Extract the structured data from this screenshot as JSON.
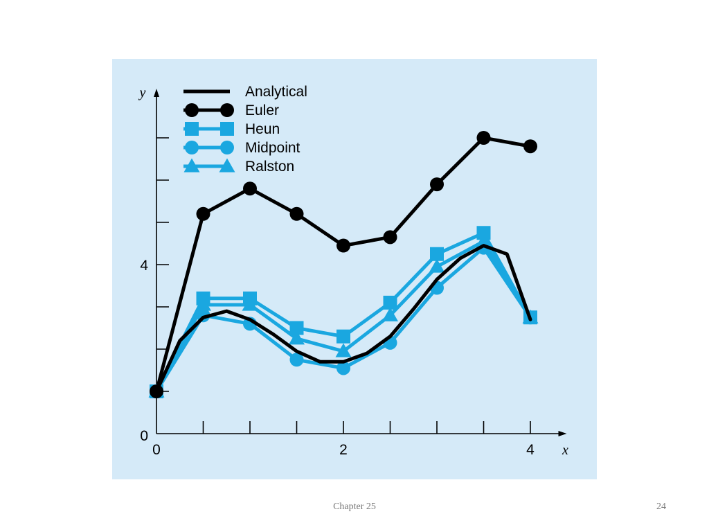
{
  "footer": {
    "chapter": "Chapter 25",
    "page": "24"
  },
  "colors": {
    "panel_bg": "#d5eaf8",
    "analytical": "#000000",
    "euler": "#000000",
    "approx": "#1aa7e0"
  },
  "chart_data": {
    "type": "line",
    "title": "",
    "xlabel": "x",
    "ylabel": "y",
    "xlim": [
      0,
      4.3
    ],
    "ylim": [
      0,
      8
    ],
    "x_tick_labels": [
      "0",
      "2",
      "4"
    ],
    "y_tick_labels": [
      "0",
      "4"
    ],
    "x_ticks": [
      0,
      0.5,
      1,
      1.5,
      2,
      2.5,
      3,
      3.5,
      4
    ],
    "y_ticks": [
      0,
      1,
      2,
      3,
      4,
      5,
      6,
      7
    ],
    "legend_position": "top-left",
    "series": [
      {
        "name": "Analytical",
        "marker": "none",
        "color": "#000000",
        "x": [
          0,
          0.25,
          0.5,
          0.75,
          1,
          1.25,
          1.5,
          1.75,
          2,
          2.25,
          2.5,
          2.75,
          3,
          3.25,
          3.5,
          3.75,
          4
        ],
        "y": [
          1,
          2.2,
          2.75,
          2.9,
          2.7,
          2.35,
          1.95,
          1.7,
          1.7,
          1.9,
          2.3,
          2.95,
          3.65,
          4.15,
          4.45,
          4.25,
          2.7
        ]
      },
      {
        "name": "Euler",
        "marker": "circle",
        "color": "#000000",
        "x": [
          0,
          0.5,
          1,
          1.5,
          2,
          2.5,
          3,
          3.5,
          4
        ],
        "y": [
          1,
          5.2,
          5.8,
          5.2,
          4.45,
          4.65,
          5.9,
          7,
          6.8
        ]
      },
      {
        "name": "Heun",
        "marker": "square",
        "color": "#1aa7e0",
        "x": [
          0,
          0.5,
          1,
          1.5,
          2,
          2.5,
          3,
          3.5,
          4
        ],
        "y": [
          1,
          3.2,
          3.2,
          2.5,
          2.3,
          3.1,
          4.25,
          4.75,
          2.75
        ]
      },
      {
        "name": "Midpoint",
        "marker": "circle",
        "color": "#1aa7e0",
        "x": [
          0,
          0.5,
          1,
          1.5,
          2,
          2.5,
          3,
          3.5,
          4
        ],
        "y": [
          1,
          2.8,
          2.6,
          1.75,
          1.55,
          2.15,
          3.45,
          4.4,
          2.75
        ]
      },
      {
        "name": "Ralston",
        "marker": "triangle",
        "color": "#1aa7e0",
        "x": [
          0,
          0.5,
          1,
          1.5,
          2,
          2.5,
          3,
          3.5,
          4
        ],
        "y": [
          1,
          3.05,
          3.05,
          2.25,
          1.95,
          2.8,
          3.95,
          4.55,
          2.75
        ]
      }
    ]
  }
}
